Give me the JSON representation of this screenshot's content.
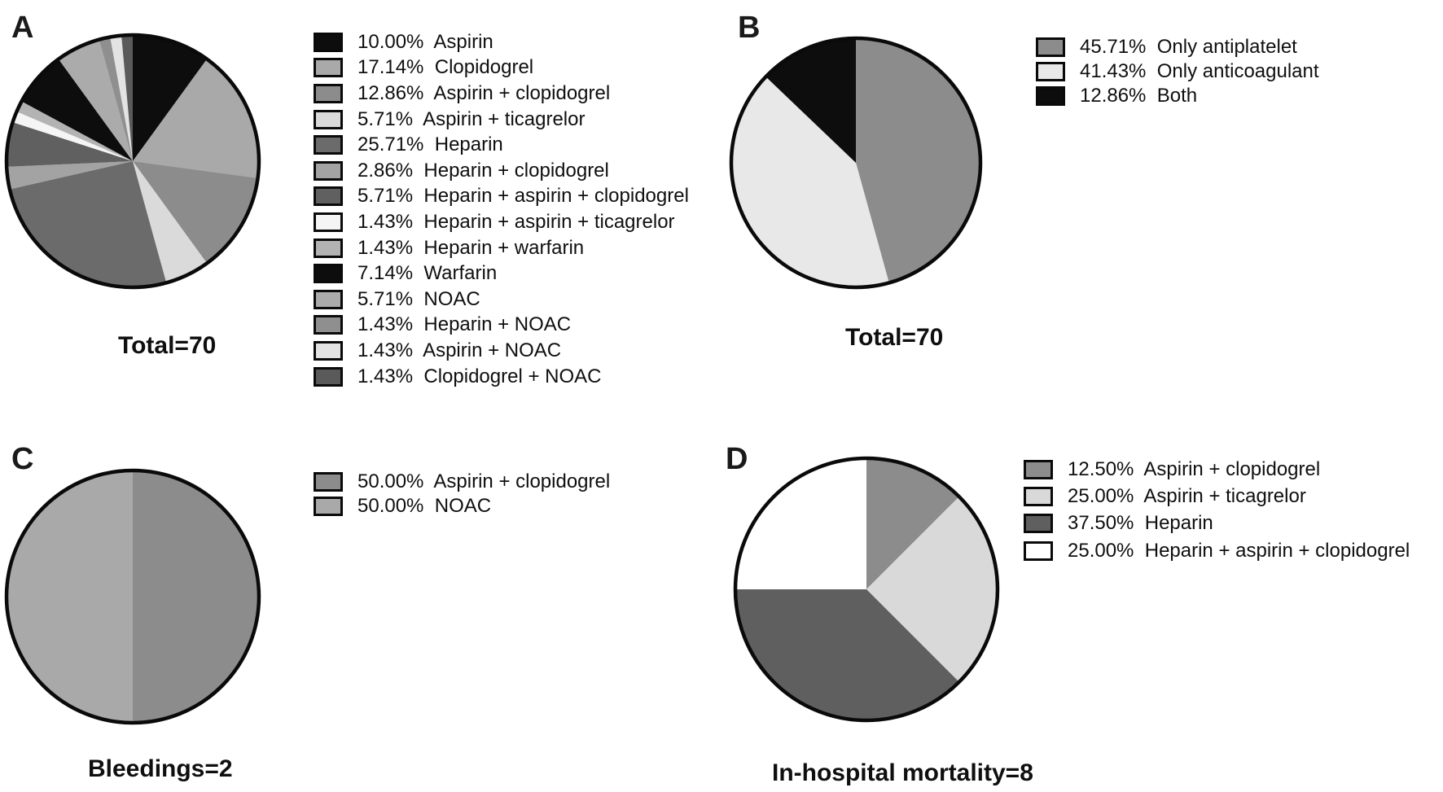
{
  "figure": {
    "background": "#ffffff",
    "outline_color": "#0a0a0a"
  },
  "chart_data": [
    {
      "type": "pie",
      "title": "A",
      "caption": "Total=70",
      "legend_position": "right",
      "start_angle_deg": 0,
      "direction": "clockwise",
      "slices": [
        {
          "pct": 10.0,
          "pct_text": "10.00%",
          "label": "Aspirin",
          "color": "#0d0d0d"
        },
        {
          "pct": 17.14,
          "pct_text": "17.14%",
          "label": "Clopidogrel",
          "color": "#a9a9a9"
        },
        {
          "pct": 12.86,
          "pct_text": "12.86%",
          "label": "Aspirin + clopidogrel",
          "color": "#8c8c8c"
        },
        {
          "pct": 5.71,
          "pct_text": "5.71%",
          "label": "Aspirin + ticagrelor",
          "color": "#dadada"
        },
        {
          "pct": 25.71,
          "pct_text": "25.71%",
          "label": "Heparin",
          "color": "#6b6b6b"
        },
        {
          "pct": 2.86,
          "pct_text": "2.86%",
          "label": "Heparin + clopidogrel",
          "color": "#a3a3a3"
        },
        {
          "pct": 5.71,
          "pct_text": "5.71%",
          "label": "Heparin + aspirin + clopidogrel",
          "color": "#606060"
        },
        {
          "pct": 1.43,
          "pct_text": "1.43%",
          "label": "Heparin + aspirin + ticagrelor",
          "color": "#f5f5f5"
        },
        {
          "pct": 1.43,
          "pct_text": "1.43%",
          "label": "Heparin + warfarin",
          "color": "#b3b3b3"
        },
        {
          "pct": 7.14,
          "pct_text": "7.14%",
          "label": "Warfarin",
          "color": "#0d0d0d"
        },
        {
          "pct": 5.71,
          "pct_text": "5.71%",
          "label": "NOAC",
          "color": "#ababab"
        },
        {
          "pct": 1.43,
          "pct_text": "1.43%",
          "label": "Heparin + NOAC",
          "color": "#8f8f8f"
        },
        {
          "pct": 1.43,
          "pct_text": "1.43%",
          "label": "Aspirin + NOAC",
          "color": "#e3e3e3"
        },
        {
          "pct": 1.43,
          "pct_text": "1.43%",
          "label": "Clopidogrel + NOAC",
          "color": "#5a5a5a"
        }
      ]
    },
    {
      "type": "pie",
      "title": "B",
      "caption": "Total=70",
      "legend_position": "right",
      "start_angle_deg": 0,
      "direction": "clockwise",
      "slices": [
        {
          "pct": 45.71,
          "pct_text": "45.71%",
          "label": "Only antiplatelet",
          "color": "#8c8c8c"
        },
        {
          "pct": 41.43,
          "pct_text": "41.43%",
          "label": "Only anticoagulant",
          "color": "#e8e8e8"
        },
        {
          "pct": 12.86,
          "pct_text": "12.86%",
          "label": "Both",
          "color": "#0d0d0d"
        }
      ]
    },
    {
      "type": "pie",
      "title": "C",
      "caption": "Bleedings=2",
      "legend_position": "right",
      "start_angle_deg": 0,
      "direction": "clockwise",
      "slices": [
        {
          "pct": 50.0,
          "pct_text": "50.00%",
          "label": "Aspirin + clopidogrel",
          "color": "#8c8c8c"
        },
        {
          "pct": 50.0,
          "pct_text": "50.00%",
          "label": "NOAC",
          "color": "#a9a9a9"
        }
      ]
    },
    {
      "type": "pie",
      "title": "D",
      "caption": "In-hospital mortality=8",
      "legend_position": "right",
      "start_angle_deg": 0,
      "direction": "clockwise",
      "slices": [
        {
          "pct": 12.5,
          "pct_text": "12.50%",
          "label": "Aspirin + clopidogrel",
          "color": "#8c8c8c"
        },
        {
          "pct": 25.0,
          "pct_text": "25.00%",
          "label": "Aspirin + ticagrelor",
          "color": "#d9d9d9"
        },
        {
          "pct": 37.5,
          "pct_text": "37.50%",
          "label": "Heparin",
          "color": "#5f5f5f"
        },
        {
          "pct": 25.0,
          "pct_text": "25.00%",
          "label": "Heparin + aspirin + clopidogrel",
          "color": "#ffffff"
        }
      ]
    }
  ]
}
